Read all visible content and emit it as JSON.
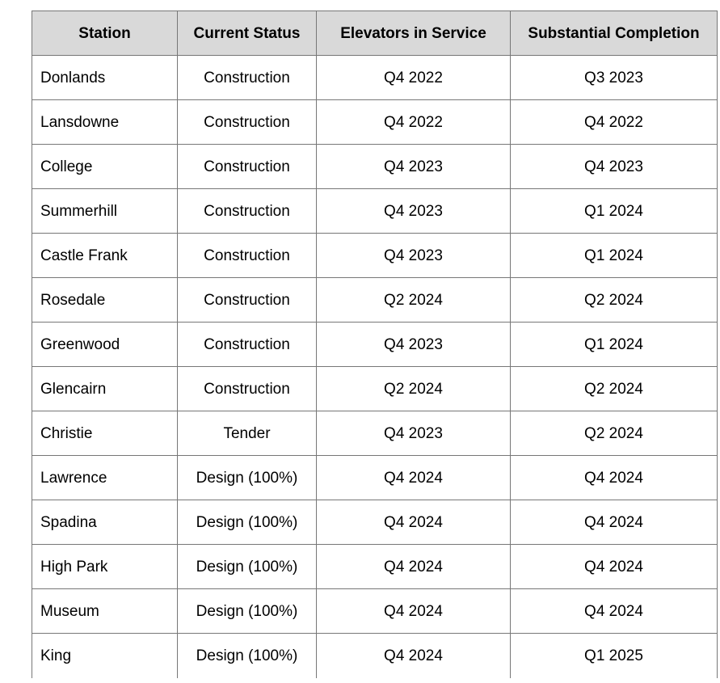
{
  "table": {
    "headers": [
      "Station",
      "Current Status",
      "Elevators in Service",
      "Substantial Completion"
    ],
    "rows": [
      [
        "Donlands",
        "Construction",
        "Q4 2022",
        "Q3 2023"
      ],
      [
        "Lansdowne",
        "Construction",
        "Q4 2022",
        "Q4 2022"
      ],
      [
        "College",
        "Construction",
        "Q4 2023",
        "Q4 2023"
      ],
      [
        "Summerhill",
        "Construction",
        "Q4 2023",
        "Q1 2024"
      ],
      [
        "Castle Frank",
        "Construction",
        "Q4 2023",
        "Q1 2024"
      ],
      [
        "Rosedale",
        "Construction",
        "Q2 2024",
        "Q2 2024"
      ],
      [
        "Greenwood",
        "Construction",
        "Q4 2023",
        "Q1 2024"
      ],
      [
        "Glencairn",
        "Construction",
        "Q2 2024",
        "Q2 2024"
      ],
      [
        "Christie",
        "Tender",
        "Q4 2023",
        "Q2 2024"
      ],
      [
        "Lawrence",
        "Design (100%)",
        "Q4 2024",
        "Q4 2024"
      ],
      [
        "Spadina",
        "Design (100%)",
        "Q4 2024",
        "Q4 2024"
      ],
      [
        "High Park",
        "Design (100%)",
        "Q4 2024",
        "Q4 2024"
      ],
      [
        "Museum",
        "Design (100%)",
        "Q4 2024",
        "Q4 2024"
      ],
      [
        "King",
        "Design (100%)",
        "Q4 2024",
        "Q1 2025"
      ]
    ]
  },
  "colors": {
    "header_background": "#d9d9d9",
    "border": "#777777",
    "text": "#000000"
  }
}
